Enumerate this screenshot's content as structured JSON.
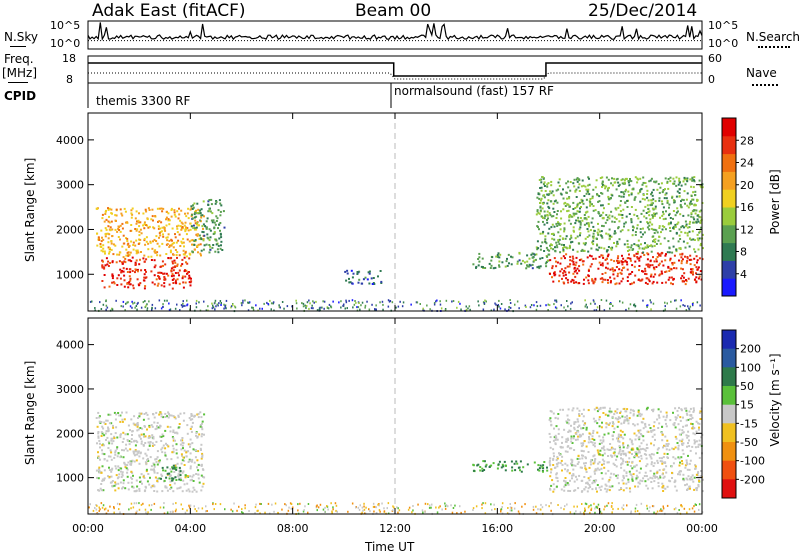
{
  "header": {
    "site": "Adak East (fitACF)",
    "beam": "Beam 00",
    "date": "25/Dec/2014"
  },
  "nsky_panel": {
    "left_label": "N.Sky",
    "right_label": "N.Search",
    "left_ticks": [
      "10^5",
      "10^0"
    ],
    "right_ticks": [
      "10^5",
      "10^0"
    ]
  },
  "freq_panel": {
    "left_label_1": "Freq.",
    "left_label_2": "[MHz]",
    "right_label": "Nave",
    "left_ticks": [
      "18",
      "8"
    ],
    "right_ticks": [
      "60",
      "0"
    ]
  },
  "cpid": {
    "label": "CPID",
    "mode1": "themis 3300 RF",
    "mode2": "normalsound (fast) 157 RF"
  },
  "power_panel": {
    "ylabel": "Slant Range [km]",
    "yticks": [
      "1000",
      "2000",
      "3000",
      "4000"
    ],
    "colorbar_label": "Power [dB]",
    "colorbar_ticks": [
      "4",
      "8",
      "12",
      "16",
      "20",
      "24",
      "28"
    ],
    "colorbar_colors": [
      "#1a1aff",
      "#2e3fa8",
      "#2f7a52",
      "#5aa050",
      "#9acc3c",
      "#f0d020",
      "#f5a020",
      "#f07010",
      "#e83010",
      "#e00000"
    ]
  },
  "velocity_panel": {
    "ylabel": "Slant Range [km]",
    "yticks": [
      "1000",
      "2000",
      "3000",
      "4000"
    ],
    "colorbar_label": "Velocity [m s⁻¹]",
    "colorbar_ticks": [
      "200",
      "100",
      "50",
      "15",
      "-15",
      "-50",
      "-100",
      "-200"
    ],
    "colorbar_colors": [
      "#1a2ab0",
      "#2a5aa0",
      "#2e7a4a",
      "#5ac03a",
      "#c8c8c8",
      "#f0c020",
      "#f09010",
      "#f05010",
      "#e01010"
    ]
  },
  "x_axis": {
    "label": "Time UT",
    "ticks": [
      "00:00",
      "04:00",
      "08:00",
      "12:00",
      "16:00",
      "20:00",
      "00:00"
    ]
  },
  "chart_data": [
    {
      "type": "heatmap",
      "title": "",
      "xlabel": "Time UT",
      "ylabel": "Slant Range [km]",
      "xlim": [
        0,
        24
      ],
      "ylim": [
        180,
        4600
      ],
      "zlabel": "Power [dB]",
      "zlim": [
        0,
        32
      ],
      "regions": [
        {
          "x": [
            0.5,
            4.0
          ],
          "y": [
            700,
            1400
          ],
          "value": 28
        },
        {
          "x": [
            0.3,
            4.5
          ],
          "y": [
            1400,
            2500
          ],
          "value": 20
        },
        {
          "x": [
            4.0,
            5.3
          ],
          "y": [
            1500,
            2700
          ],
          "value": 10
        },
        {
          "x": [
            10.0,
            11.5
          ],
          "y": [
            800,
            1100
          ],
          "value": 6
        },
        {
          "x": [
            15.0,
            18.0
          ],
          "y": [
            1150,
            1500
          ],
          "value": 10
        },
        {
          "x": [
            18.0,
            24.0
          ],
          "y": [
            800,
            1500
          ],
          "value": 28
        },
        {
          "x": [
            17.5,
            24.0
          ],
          "y": [
            1500,
            3200
          ],
          "value": 12
        }
      ]
    },
    {
      "type": "heatmap",
      "title": "",
      "xlabel": "Time UT",
      "ylabel": "Slant Range [km]",
      "xlim": [
        0,
        24
      ],
      "ylim": [
        180,
        4600
      ],
      "zlabel": "Velocity [m s⁻¹]",
      "zlim": [
        -200,
        200
      ],
      "regions": [
        {
          "x": [
            0.3,
            4.5
          ],
          "y": [
            700,
            2500
          ],
          "value": 0
        },
        {
          "x": [
            2.8,
            3.8
          ],
          "y": [
            950,
            1300
          ],
          "value": 50
        },
        {
          "x": [
            15.0,
            18.0
          ],
          "y": [
            1150,
            1400
          ],
          "value": 50
        },
        {
          "x": [
            18.0,
            24.0
          ],
          "y": [
            700,
            2600
          ],
          "value": 0
        }
      ]
    }
  ]
}
